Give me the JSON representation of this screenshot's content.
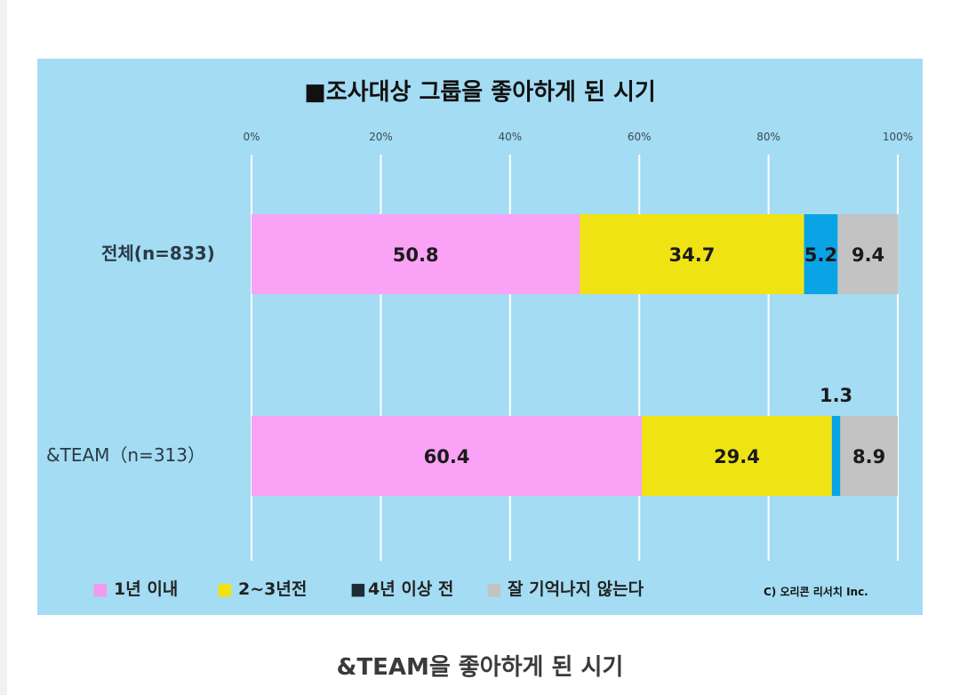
{
  "chart_data": {
    "type": "bar",
    "stacked": true,
    "orientation": "horizontal",
    "title": "■조사대상 그룹을 좋아하게 된 시기",
    "xlim": [
      0,
      100
    ],
    "ticks": [
      "0%",
      "20%",
      "40%",
      "60%",
      "80%",
      "100%"
    ],
    "grid": true,
    "categories": [
      "전체(n=833)",
      "&TEAM（n=313）"
    ],
    "series": [
      {
        "name": "1년 이내",
        "color": "#f9a2f6",
        "values": [
          50.8,
          60.4
        ],
        "labels": [
          "50.8",
          "60.4"
        ]
      },
      {
        "name": "2~3년전",
        "color": "#f0e313",
        "values": [
          34.7,
          29.4
        ],
        "labels": [
          "34.7",
          "29.4"
        ]
      },
      {
        "name": "4년 이상 전",
        "color": "#0aa3e6",
        "values": [
          5.2,
          1.3
        ],
        "labels": [
          "5.2",
          "1.3"
        ]
      },
      {
        "name": "잘 기억나지 않는다",
        "color": "#c3c3c3",
        "values": [
          9.4,
          8.9
        ],
        "labels": [
          "9.4",
          "8.9"
        ]
      }
    ],
    "legend": {
      "position": "bottom",
      "items": [
        {
          "marker": "■",
          "color": "#f29af0",
          "label": "1년 이내"
        },
        {
          "marker": "■",
          "color": "#f0e313",
          "label": "2~3년전"
        },
        {
          "marker": "■",
          "color": "#1c2b35",
          "label": "4년 이상 전"
        },
        {
          "marker": "■",
          "color": "#c3c3c3",
          "label": "잘 기억나지 않는다"
        }
      ]
    },
    "credit": "C) 오리콘 리서치 Inc."
  },
  "caption": "&TEAM을 좋아하게 된 시기"
}
